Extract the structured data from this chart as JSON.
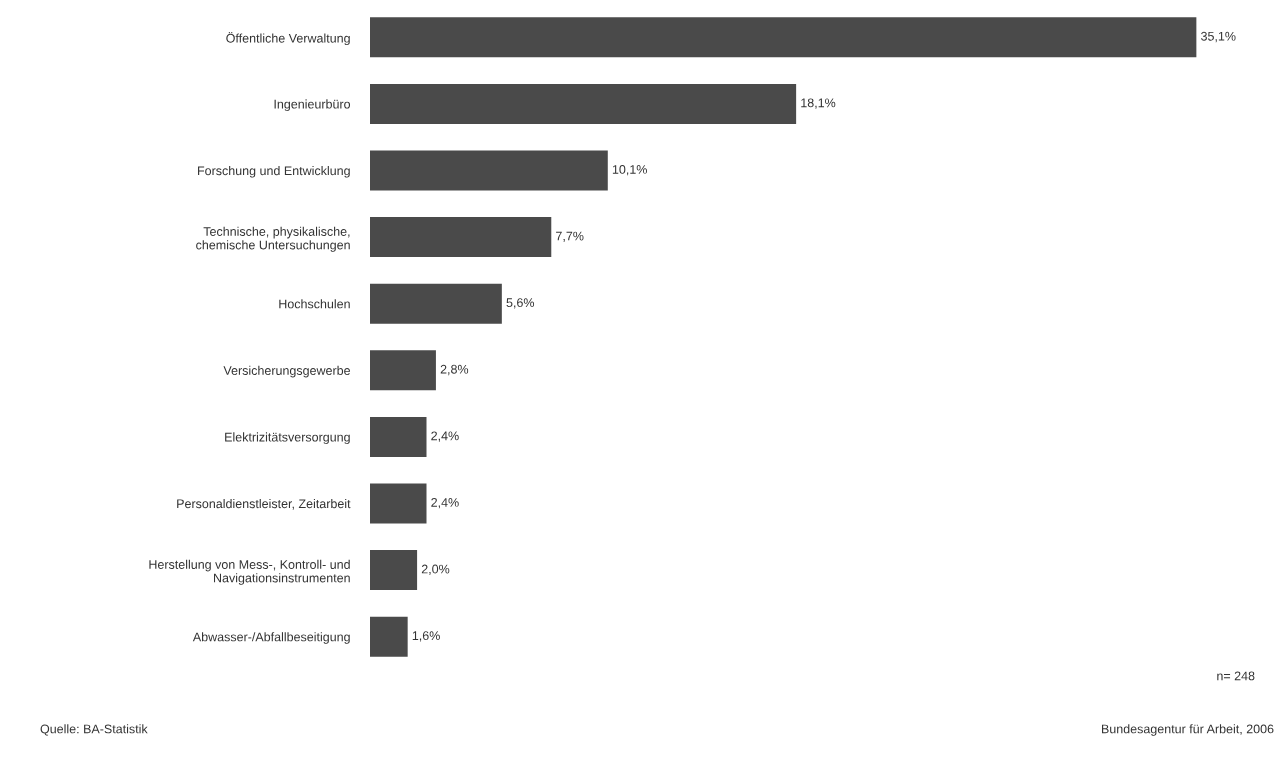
{
  "chart_data": {
    "type": "bar",
    "orientation": "horizontal",
    "categories": [
      "Öffentliche Verwaltung",
      "Ingenieurbüro",
      "Forschung und Entwicklung",
      "Technische, physikalische,\nchemische Untersuchungen",
      "Hochschulen",
      "Versicherungsgewerbe",
      "Elektrizitätsversorgung",
      "Personaldienstleister, Zeitarbeit",
      "Herstellung von Mess-, Kontroll- und\nNavigationsinstrumenten",
      "Abwasser-/Abfallbeseitigung"
    ],
    "values": [
      35.1,
      18.1,
      10.1,
      7.7,
      5.6,
      2.8,
      2.4,
      2.4,
      2.0,
      1.6
    ],
    "value_labels": [
      "35,1%",
      "18,1%",
      "10,1%",
      "7,7%",
      "5,6%",
      "2,8%",
      "2,4%",
      "2,4%",
      "2,0%",
      "1,6%"
    ],
    "color": "#4a4a4a",
    "tick_labels": "y",
    "grid": false,
    "legend": false,
    "annotations": [
      "n= 248",
      "Quelle: BA-Statistik",
      "Bundesagentur für Arbeit, 2006"
    ]
  }
}
